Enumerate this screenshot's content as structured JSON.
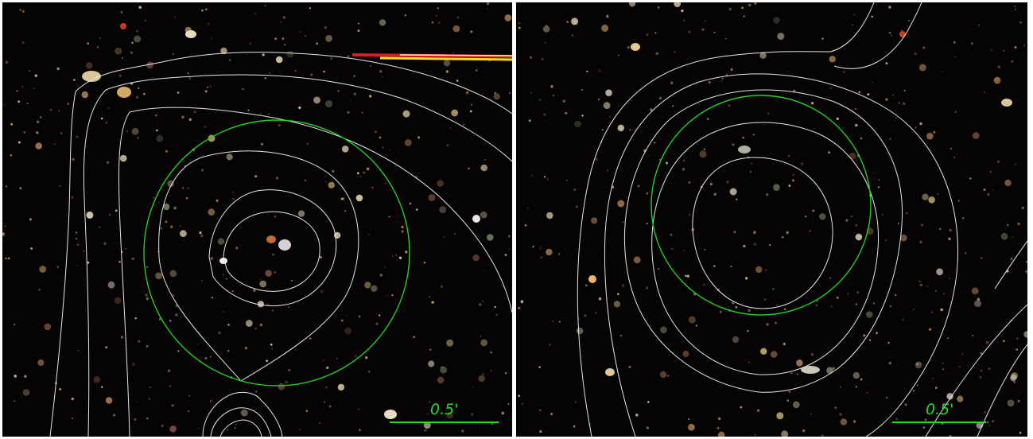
{
  "colors": {
    "sky": "#050303",
    "contour": "#e6e6e6",
    "circle": "#22d022",
    "scale": "#1fe01f",
    "streak": [
      "#d42020",
      "#f0e020",
      "#f7f7c0"
    ]
  },
  "panels": [
    {
      "scale_bar": {
        "label": "0.5'"
      }
    },
    {
      "scale_bar": {
        "label": "0.5'"
      }
    }
  ]
}
